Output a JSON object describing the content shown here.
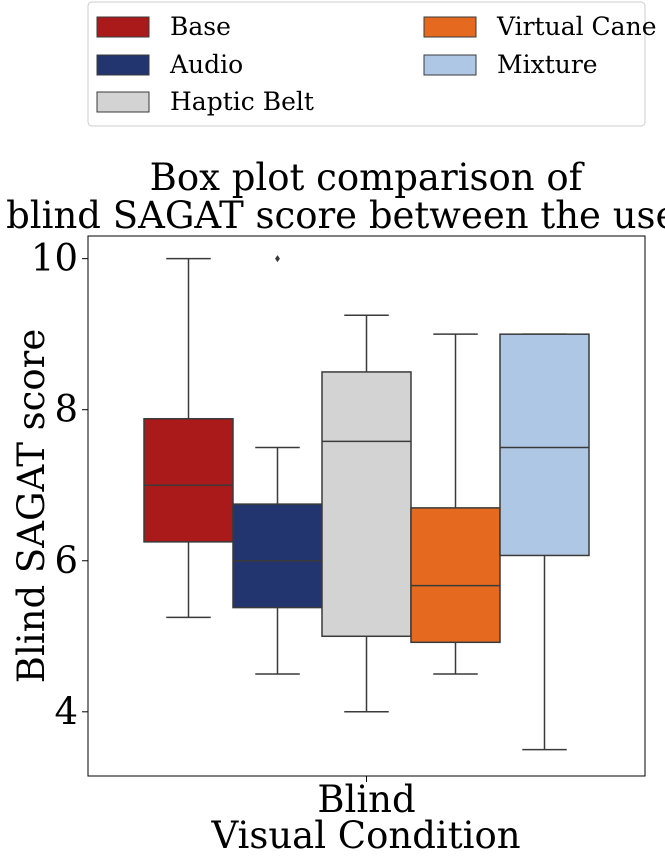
{
  "chart_data": {
    "type": "box",
    "title_lines": [
      "Box plot comparison of",
      "blind SAGAT score between the users."
    ],
    "xlabel": "Visual Condition",
    "ylabel": "Blind SAGAT score",
    "categories": [
      "Blind"
    ],
    "ylim": [
      3.15,
      10.3
    ],
    "yticks": [
      4,
      6,
      8,
      10
    ],
    "grid": false,
    "legend_position": "top, outside plot",
    "series": [
      {
        "name": "Base",
        "color": "#aa1a1a",
        "whisker_low": 5.25,
        "q1": 6.25,
        "median": 7.0,
        "q3": 7.88,
        "whisker_high": 10.0,
        "outliers": []
      },
      {
        "name": "Audio",
        "color": "#22356f",
        "whisker_low": 4.5,
        "q1": 5.38,
        "median": 6.0,
        "q3": 6.75,
        "whisker_high": 7.5,
        "outliers": [
          10.0
        ]
      },
      {
        "name": "Haptic Belt",
        "color": "#d3d3d3",
        "whisker_low": 4.0,
        "q1": 5.0,
        "median": 7.58,
        "q3": 8.5,
        "whisker_high": 9.25,
        "outliers": []
      },
      {
        "name": "Virtual Cane",
        "color": "#e56a1f",
        "whisker_low": 4.5,
        "q1": 4.92,
        "median": 5.67,
        "q3": 6.7,
        "whisker_high": 9.0,
        "outliers": []
      },
      {
        "name": "Mixture",
        "color": "#aec7e4",
        "whisker_low": 3.5,
        "q1": 6.07,
        "median": 7.5,
        "q3": 9.0,
        "whisker_high": 9.0,
        "outliers": []
      }
    ]
  }
}
